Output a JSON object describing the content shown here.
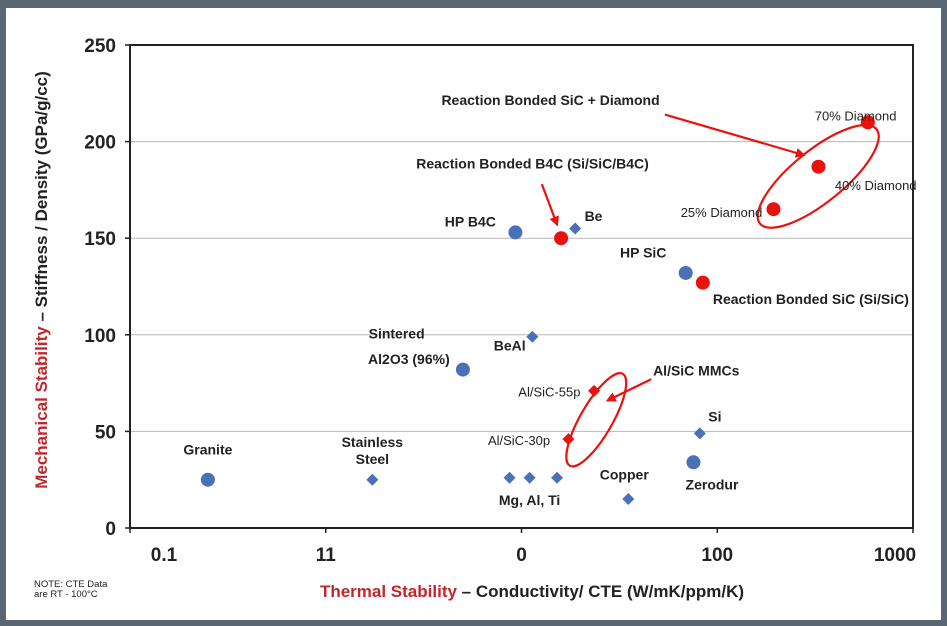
{
  "chart_data": {
    "type": "scatter",
    "title": "",
    "xlabel_highlight": "Thermal Stability",
    "xlabel_rest": " – Conductivity/ CTE (W/mK/ppm/K)",
    "ylabel_highlight": "Mechanical Stability",
    "ylabel_rest": " – Stiffness / Density (GPa/g/cc)",
    "x_scale": "log",
    "x_ticks": [
      "0.1",
      "11",
      "0",
      "100",
      "1000"
    ],
    "xlim": [
      0.1,
      1000
    ],
    "ylim": [
      0,
      250
    ],
    "y_ticks": [
      0,
      50,
      100,
      150,
      200,
      250
    ],
    "grid": "horizontal",
    "highlight_color": "#c0262c",
    "colors": {
      "blue": "#4a70b8",
      "red": "#e8130f",
      "axis": "#222222",
      "grid": "#b8b8b8"
    },
    "points": [
      {
        "label": "Granite",
        "x": 0.25,
        "y": 25,
        "shape": "circle",
        "color": "blue"
      },
      {
        "label": "Stainless Steel",
        "x": 1.73,
        "y": 25,
        "shape": "diamond",
        "color": "blue"
      },
      {
        "label": "Sintered Al2O3 (96%)",
        "x": 5.02,
        "y": 82,
        "shape": "circle",
        "color": "blue"
      },
      {
        "label": "HP B4C",
        "x": 9.31,
        "y": 153,
        "shape": "circle",
        "color": "blue"
      },
      {
        "label": "Reaction Bonded B4C (Si/SiC/B4C)",
        "x": 15.93,
        "y": 150,
        "shape": "circle",
        "color": "red"
      },
      {
        "label": "Be",
        "x": 18.81,
        "y": 155,
        "shape": "diamond",
        "color": "blue"
      },
      {
        "label": "BeAl",
        "x": 11.36,
        "y": 99,
        "shape": "diamond",
        "color": "blue"
      },
      {
        "label": "Mg, Al, Ti",
        "x": 8.69,
        "y": 26,
        "shape": "diamond",
        "color": "blue"
      },
      {
        "label": "Mg, Al, Ti",
        "x": 11.0,
        "y": 26,
        "shape": "diamond",
        "color": "blue"
      },
      {
        "label": "Mg, Al, Ti",
        "x": 15.19,
        "y": 26,
        "shape": "diamond",
        "color": "blue"
      },
      {
        "label": "Al/SiC-55p",
        "x": 23.48,
        "y": 71,
        "shape": "diamond",
        "color": "red"
      },
      {
        "label": "Al/SiC-30p",
        "x": 17.36,
        "y": 46,
        "shape": "diamond",
        "color": "red"
      },
      {
        "label": "Copper",
        "x": 35.13,
        "y": 15,
        "shape": "diamond",
        "color": "blue"
      },
      {
        "label": "HP SiC",
        "x": 69.0,
        "y": 132,
        "shape": "circle",
        "color": "blue"
      },
      {
        "label": "Reaction Bonded SiC (Si/SiC)",
        "x": 84.4,
        "y": 127,
        "shape": "circle",
        "color": "red"
      },
      {
        "label": "Zerodur",
        "x": 75.6,
        "y": 34,
        "shape": "circle",
        "color": "blue"
      },
      {
        "label": "Si",
        "x": 81.5,
        "y": 49,
        "shape": "diamond",
        "color": "blue"
      },
      {
        "label": "25% Diamond",
        "x": 193.8,
        "y": 165,
        "shape": "circle",
        "color": "red"
      },
      {
        "label": "40% Diamond",
        "x": 329.0,
        "y": 187,
        "shape": "circle",
        "color": "red"
      },
      {
        "label": "70% Diamond",
        "x": 588.0,
        "y": 210,
        "shape": "circle",
        "color": "red"
      }
    ],
    "labels": [
      {
        "text": "Granite",
        "x": 0.25,
        "y": 38,
        "anchor": "middle",
        "style": "bold"
      },
      {
        "text": "Stainless",
        "x": 1.73,
        "y": 42,
        "anchor": "middle",
        "style": "bold"
      },
      {
        "text": "Steel",
        "x": 1.73,
        "y": 33,
        "anchor": "middle",
        "style": "bold"
      },
      {
        "text": "Sintered",
        "x": 3.2,
        "y": 98,
        "anchor": "end",
        "style": "bold"
      },
      {
        "text": "Al2O3 (96%)",
        "x": 4.3,
        "y": 85,
        "anchor": "end",
        "style": "bold"
      },
      {
        "text": "HP B4C",
        "x": 7.4,
        "y": 156,
        "anchor": "end",
        "style": "bold"
      },
      {
        "text": "Be",
        "x": 21.0,
        "y": 159,
        "anchor": "start",
        "style": "bold"
      },
      {
        "text": "BeAl",
        "x": 10.5,
        "y": 92,
        "anchor": "end",
        "style": "bold"
      },
      {
        "text": "Mg,  Al,  Ti",
        "x": 11.0,
        "y": 12,
        "anchor": "middle",
        "style": "bold"
      },
      {
        "text": "Copper",
        "x": 33.5,
        "y": 25,
        "anchor": "middle",
        "style": "bold"
      },
      {
        "text": "Zerodur",
        "x": 94.0,
        "y": 20,
        "anchor": "middle",
        "style": "bold"
      },
      {
        "text": "Si",
        "x": 90.0,
        "y": 55,
        "anchor": "start",
        "style": "bold"
      },
      {
        "text": "HP SiC",
        "x": 55.0,
        "y": 140,
        "anchor": "end",
        "style": "bold"
      },
      {
        "text": "Reaction Bonded SiC (Si/SiC)",
        "x": 95.0,
        "y": 116,
        "anchor": "start",
        "style": "bold"
      },
      {
        "text": "Reaction Bonded B4C (Si/SiC/B4C)",
        "x": 2.9,
        "y": 186,
        "anchor": "start",
        "style": "bold"
      },
      {
        "text": "Reaction Bonded SiC + Diamond",
        "x": 3.9,
        "y": 219,
        "anchor": "start",
        "style": "bold"
      },
      {
        "text": "Al/SiC MMCs",
        "x": 47.0,
        "y": 79,
        "anchor": "start",
        "style": "bold"
      },
      {
        "text": "Al/SiC-55p",
        "x": 20.0,
        "y": 68,
        "anchor": "end",
        "style": "normal"
      },
      {
        "text": "Al/SiC-30p",
        "x": 14.0,
        "y": 43,
        "anchor": "end",
        "style": "normal"
      },
      {
        "text": "70% Diamond",
        "x": 315.0,
        "y": 211,
        "anchor": "start",
        "style": "normal"
      },
      {
        "text": "40% Diamond",
        "x": 399.0,
        "y": 175,
        "anchor": "start",
        "style": "normal"
      },
      {
        "text": "25% Diamond",
        "x": 170.0,
        "y": 161,
        "anchor": "end",
        "style": "normal"
      }
    ],
    "annotation_arrows": [
      {
        "from": [
          54.0,
          214
        ],
        "to": [
          277.0,
          193
        ]
      },
      {
        "from": [
          12.7,
          178
        ],
        "to": [
          15.2,
          157
        ]
      },
      {
        "from": [
          46.0,
          77
        ],
        "to": [
          27.5,
          66
        ]
      }
    ],
    "annotation_ellipses": [
      {
        "cx": 328.0,
        "cy": 182,
        "rx": 75,
        "ry": 26,
        "angle": -39
      },
      {
        "cx": 24.1,
        "cy": 56,
        "rx": 53,
        "ry": 16,
        "angle": -60
      }
    ]
  },
  "note": {
    "line1": "NOTE: CTE Data",
    "line2": "are RT - 100°C"
  }
}
